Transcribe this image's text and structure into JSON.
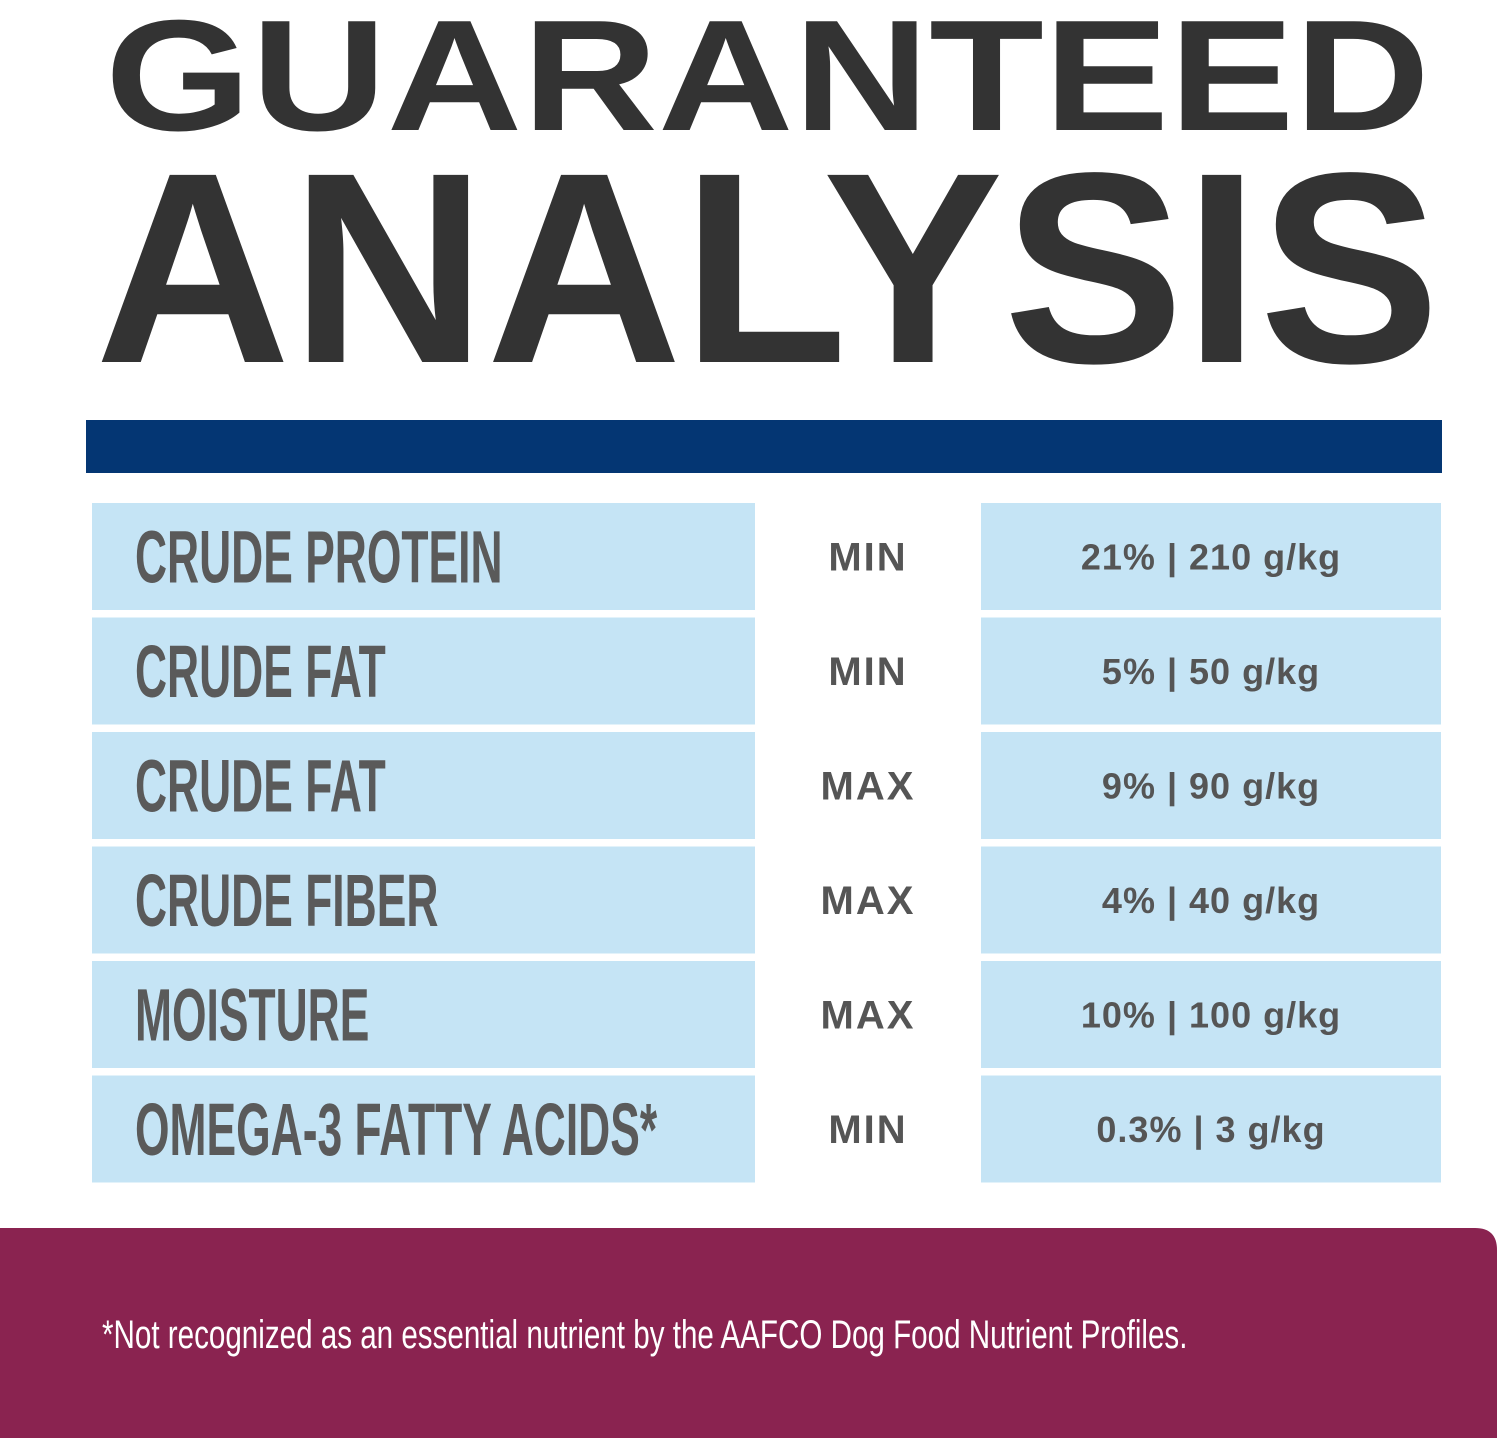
{
  "header": {
    "title": [
      "GUARANTEED",
      "ANALYSIS"
    ]
  },
  "table": {
    "rows": [
      [
        "CRUDE PROTEIN",
        "MIN",
        "21% | 210 g/kg"
      ],
      [
        "CRUDE FAT",
        "MIN",
        "5% | 50 g/kg"
      ],
      [
        "CRUDE FAT",
        "MAX",
        "9% | 90 g/kg"
      ],
      [
        "CRUDE FIBER",
        "MAX",
        "4% | 40 g/kg"
      ],
      [
        "MOISTURE",
        "MAX",
        "10% | 100 g/kg"
      ],
      [
        "OMEGA-3 FATTY ACIDS*",
        "MIN",
        "0.3% | 3 g/kg"
      ]
    ]
  },
  "footnote": "*Not recognized as an essential nutrient by the AAFCO Dog Food Nutrient Profiles."
}
